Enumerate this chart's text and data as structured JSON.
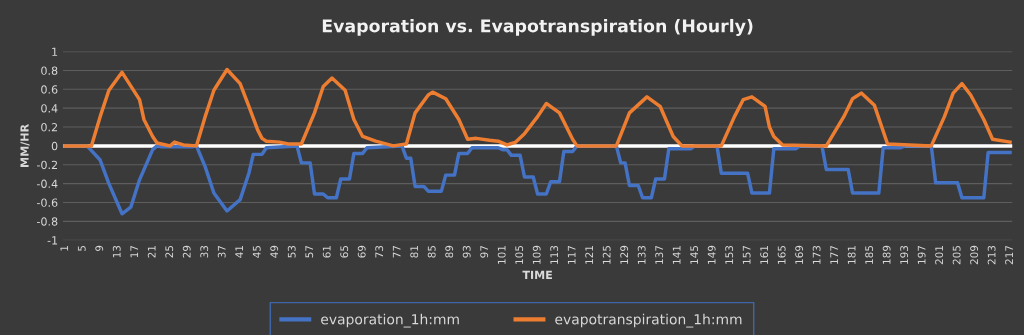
{
  "chart_data": {
    "type": "line",
    "title": "Evaporation vs. Evapotranspiration (Hourly)",
    "xlabel": "TIME",
    "ylabel": "MM/HR",
    "xlim": [
      0.5,
      217.5
    ],
    "xticks": [
      1,
      5,
      9,
      13,
      17,
      21,
      25,
      29,
      33,
      37,
      41,
      45,
      49,
      53,
      57,
      61,
      65,
      69,
      73,
      77,
      81,
      85,
      89,
      93,
      97,
      101,
      105,
      109,
      113,
      117,
      121,
      125,
      129,
      133,
      137,
      141,
      145,
      149,
      153,
      157,
      161,
      165,
      169,
      173,
      177,
      181,
      185,
      189,
      193,
      197,
      201,
      205,
      209,
      213,
      217
    ],
    "ylim": [
      -1,
      1
    ],
    "yticks": [
      -1,
      -0.8,
      -0.6,
      -0.4,
      -0.2,
      0,
      0.2,
      0.4,
      0.6,
      0.8,
      1
    ],
    "grid": "y",
    "legend": "bottom",
    "marker": "none",
    "line_style": "solid",
    "ref_lines": [
      {
        "axis": "y",
        "value": 0,
        "color": "#ffffff"
      }
    ],
    "series": [
      {
        "name": "evaporation_1h:mm",
        "color": "#4472c4",
        "x": [
          1,
          6,
          9,
          11,
          14,
          16,
          18,
          21,
          22,
          23,
          30,
          31,
          33,
          35,
          38,
          41,
          43,
          44,
          46,
          47,
          54,
          55,
          57,
          58,
          60,
          61,
          63,
          64,
          66,
          67,
          69,
          70,
          78,
          79,
          80,
          81,
          83,
          84,
          87,
          88,
          90,
          91,
          93,
          94,
          100,
          101,
          102,
          103,
          105,
          106,
          108,
          109,
          111,
          112,
          114,
          115,
          117,
          118,
          127,
          128,
          129,
          130,
          132,
          133,
          135,
          136,
          138,
          139,
          144,
          145,
          150,
          151,
          157,
          158,
          162,
          163,
          168,
          169,
          174,
          175,
          180,
          181,
          187,
          188,
          192,
          193,
          199,
          200,
          205,
          206,
          211,
          212,
          217
        ],
        "values": [
          0,
          0,
          -0.15,
          -0.4,
          -0.72,
          -0.65,
          -0.36,
          -0.04,
          0,
          -0.01,
          -0.01,
          0,
          -0.22,
          -0.5,
          -0.69,
          -0.57,
          -0.29,
          -0.09,
          -0.09,
          -0.02,
          0,
          -0.18,
          -0.18,
          -0.51,
          -0.51,
          -0.55,
          -0.55,
          -0.35,
          -0.35,
          -0.08,
          -0.08,
          -0.02,
          0,
          -0.13,
          -0.13,
          -0.43,
          -0.43,
          -0.48,
          -0.48,
          -0.31,
          -0.31,
          -0.08,
          -0.08,
          -0.02,
          -0.02,
          -0.04,
          -0.04,
          -0.1,
          -0.1,
          -0.33,
          -0.33,
          -0.51,
          -0.51,
          -0.38,
          -0.38,
          -0.06,
          -0.06,
          0,
          0,
          -0.18,
          -0.18,
          -0.42,
          -0.42,
          -0.55,
          -0.55,
          -0.35,
          -0.35,
          -0.03,
          -0.03,
          0,
          0,
          -0.29,
          -0.29,
          -0.5,
          -0.5,
          -0.03,
          -0.03,
          0,
          0,
          -0.25,
          -0.25,
          -0.5,
          -0.5,
          -0.02,
          -0.02,
          0,
          0,
          -0.39,
          -0.39,
          -0.55,
          -0.55,
          -0.07,
          -0.07
        ]
      },
      {
        "name": "evapotranspiration_1h:mm",
        "color": "#ed7d31",
        "x": [
          1,
          7,
          9,
          11,
          14,
          18,
          19,
          21,
          22,
          24,
          25,
          26,
          28,
          31,
          33,
          35,
          38,
          41,
          43,
          45,
          46,
          47,
          50,
          52,
          55,
          58,
          60,
          62,
          65,
          67,
          69,
          72,
          76,
          79,
          81,
          84,
          85,
          88,
          91,
          93,
          95,
          98,
          100,
          102,
          104,
          106,
          109,
          111,
          114,
          117,
          118,
          127,
          130,
          134,
          137,
          140,
          142,
          151,
          154,
          156,
          158,
          161,
          162,
          163,
          165,
          175,
          179,
          181,
          183,
          186,
          189,
          199,
          202,
          204,
          206,
          208,
          211,
          213,
          217
        ],
        "values": [
          0,
          0,
          0.31,
          0.59,
          0.78,
          0.49,
          0.28,
          0.1,
          0.03,
          0.01,
          0,
          0.04,
          0.01,
          0,
          0.31,
          0.59,
          0.81,
          0.66,
          0.42,
          0.17,
          0.08,
          0.05,
          0.04,
          0.02,
          0.02,
          0.35,
          0.63,
          0.72,
          0.59,
          0.28,
          0.1,
          0.05,
          0,
          0.02,
          0.35,
          0.54,
          0.57,
          0.5,
          0.28,
          0.07,
          0.08,
          0.06,
          0.05,
          0.01,
          0.04,
          0.13,
          0.31,
          0.45,
          0.35,
          0.07,
          0,
          0,
          0.35,
          0.52,
          0.42,
          0.1,
          0,
          0,
          0.31,
          0.49,
          0.52,
          0.42,
          0.2,
          0.1,
          0.01,
          0,
          0.31,
          0.5,
          0.56,
          0.43,
          0.02,
          0,
          0.31,
          0.56,
          0.66,
          0.54,
          0.28,
          0.07,
          0.04
        ]
      }
    ]
  }
}
